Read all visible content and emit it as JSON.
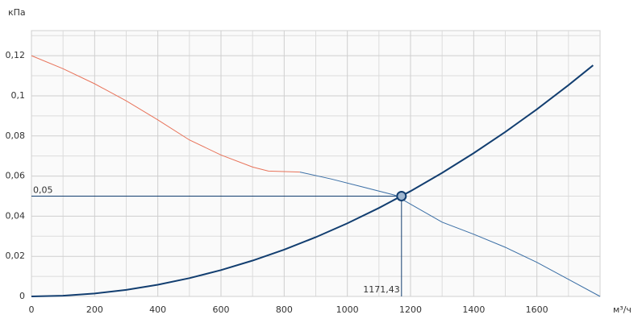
{
  "chart_data": {
    "type": "line",
    "y_axis_label": "кПа",
    "x_axis_label": "м³/ч",
    "xlim": [
      0,
      1800
    ],
    "ylim": [
      0,
      0.1325
    ],
    "xticks": [
      0,
      200,
      400,
      600,
      800,
      1000,
      1200,
      1400,
      1600
    ],
    "xminor": [
      100,
      300,
      500,
      700,
      900,
      1100,
      1300,
      1500,
      1700
    ],
    "yticks": [
      0,
      {
        "value": 0.02,
        "label": "0,02"
      },
      {
        "value": 0.04,
        "label": "0,04"
      },
      {
        "value": 0.06,
        "label": "0,06"
      },
      {
        "value": 0.08,
        "label": "0,08"
      },
      {
        "value": 0.1,
        "label": "0,1"
      },
      {
        "value": 0.12,
        "label": "0,12"
      }
    ],
    "yminor": [
      0.01,
      0.03,
      0.05,
      0.07,
      0.09,
      0.11,
      0.13
    ],
    "grid": true,
    "series": [
      {
        "color": "#e8735a",
        "width": 1,
        "x": [
          0,
          100,
          200,
          300,
          400,
          500,
          600,
          700,
          750,
          850
        ],
        "values": [
          0.12,
          0.1135,
          0.106,
          0.0975,
          0.088,
          0.078,
          0.0705,
          0.0645,
          0.0625,
          0.062
        ]
      },
      {
        "color": "#3a6ea5",
        "width": 1,
        "x": [
          850,
          950,
          1050,
          1150,
          1200,
          1300,
          1400,
          1500,
          1600,
          1700,
          1800
        ],
        "values": [
          0.062,
          0.0585,
          0.0545,
          0.0505,
          0.046,
          0.037,
          0.031,
          0.0245,
          0.017,
          0.0085,
          0
        ]
      },
      {
        "color": "#123e70",
        "width": 2,
        "x": [
          0,
          100,
          200,
          300,
          400,
          500,
          600,
          700,
          800,
          900,
          1000,
          1100,
          1200,
          1300,
          1400,
          1500,
          1600,
          1700,
          1778
        ],
        "values": [
          0,
          0.00036,
          0.00146,
          0.00328,
          0.00583,
          0.00911,
          0.01312,
          0.01786,
          0.02332,
          0.02952,
          0.03644,
          0.04409,
          0.05247,
          0.06158,
          0.07142,
          0.08199,
          0.09329,
          0.10532,
          0.1152
        ]
      }
    ],
    "operating_point": {
      "x": 1171.43,
      "y": 0.05,
      "x_label": "1171,43",
      "y_label": "0,05",
      "color": "#123e70"
    }
  }
}
